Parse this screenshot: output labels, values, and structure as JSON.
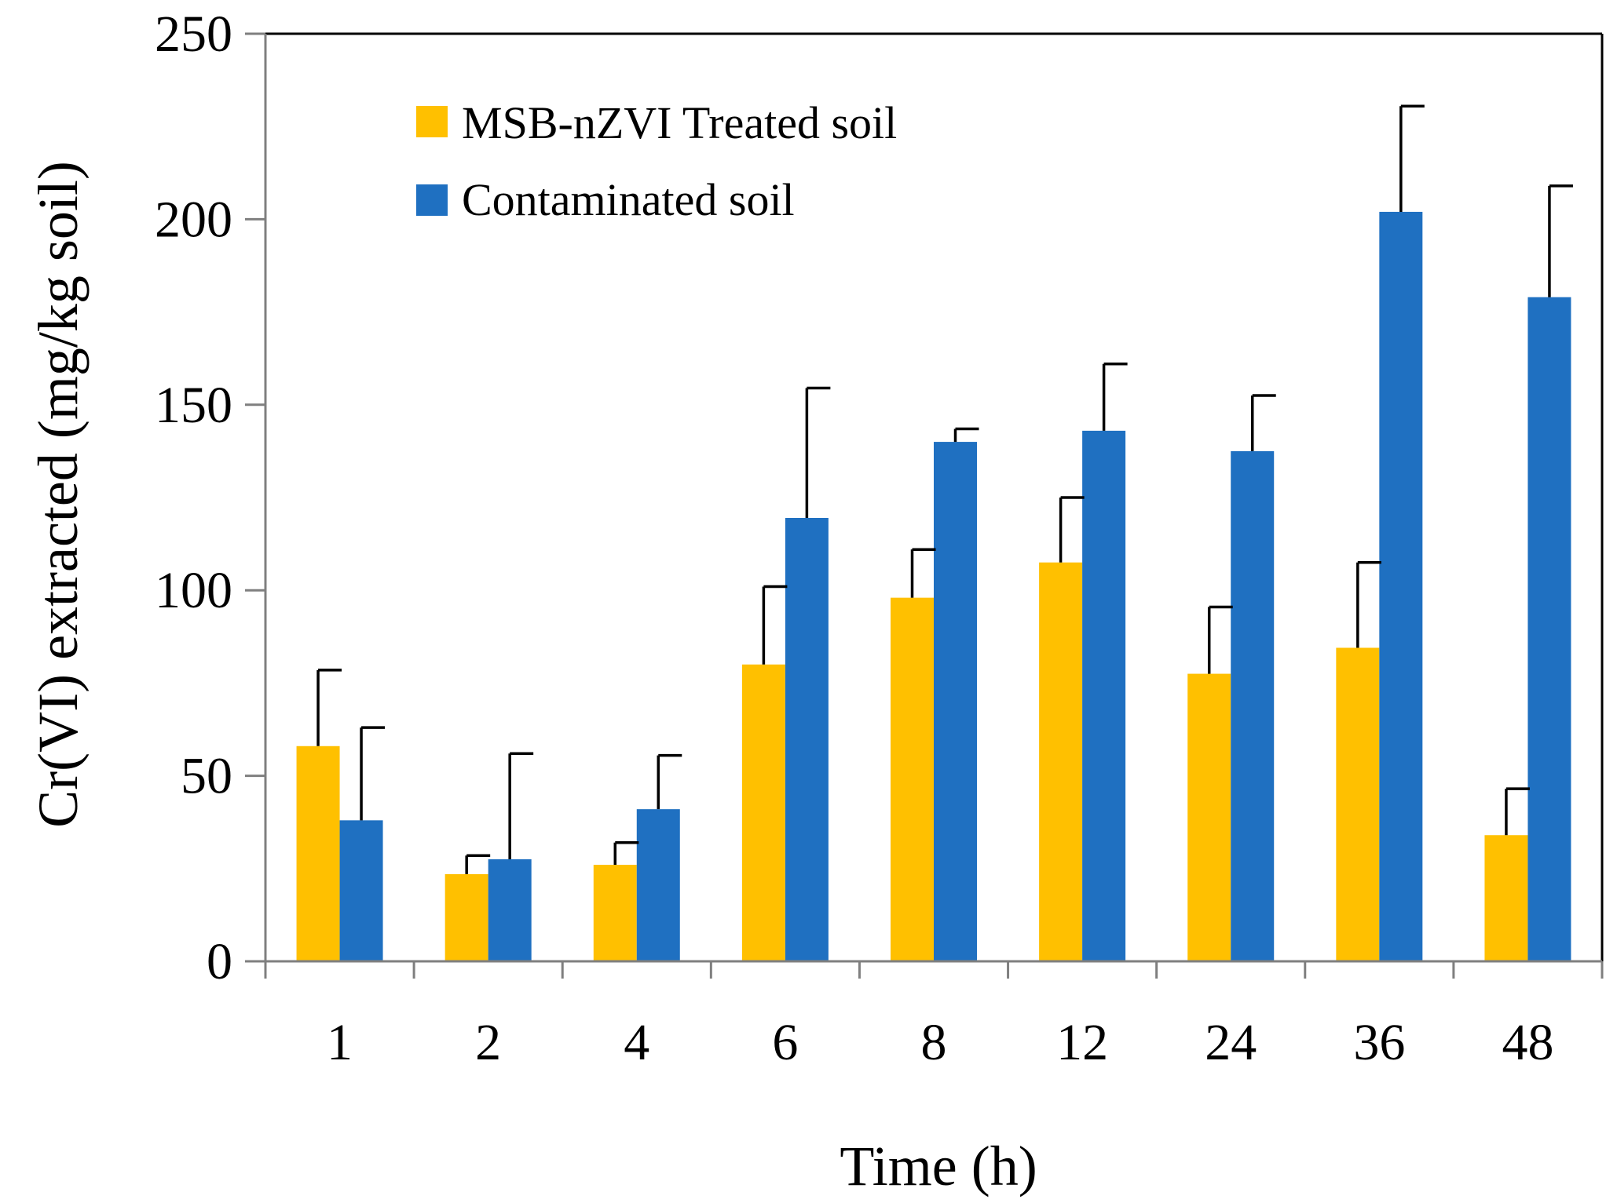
{
  "chart_data": {
    "type": "bar",
    "title": "",
    "xlabel": "Time (h)",
    "ylabel": "Cr(VI) extracted (mg/kg soil)",
    "ylim": [
      0,
      250
    ],
    "yticks": [
      0,
      50,
      100,
      150,
      200,
      250
    ],
    "categories": [
      "1",
      "2",
      "4",
      "6",
      "8",
      "12",
      "24",
      "36",
      "48"
    ],
    "series": [
      {
        "name": "MSB-nZVI Treated soil",
        "color": "#FFC000",
        "values": [
          58,
          23.5,
          26,
          80,
          98,
          107.5,
          77.5,
          84.5,
          34
        ],
        "errors": [
          20.5,
          5,
          6,
          21,
          13,
          17.5,
          18,
          23,
          12.5
        ]
      },
      {
        "name": "Contaminated soil",
        "color": "#1F70C1",
        "values": [
          38,
          27.5,
          41,
          119.5,
          140,
          143,
          137.5,
          202,
          179
        ],
        "errors": [
          25,
          28.5,
          14.5,
          35,
          3.5,
          18,
          15,
          28.5,
          30
        ]
      }
    ],
    "legend_position": "top-left",
    "grid": false
  }
}
